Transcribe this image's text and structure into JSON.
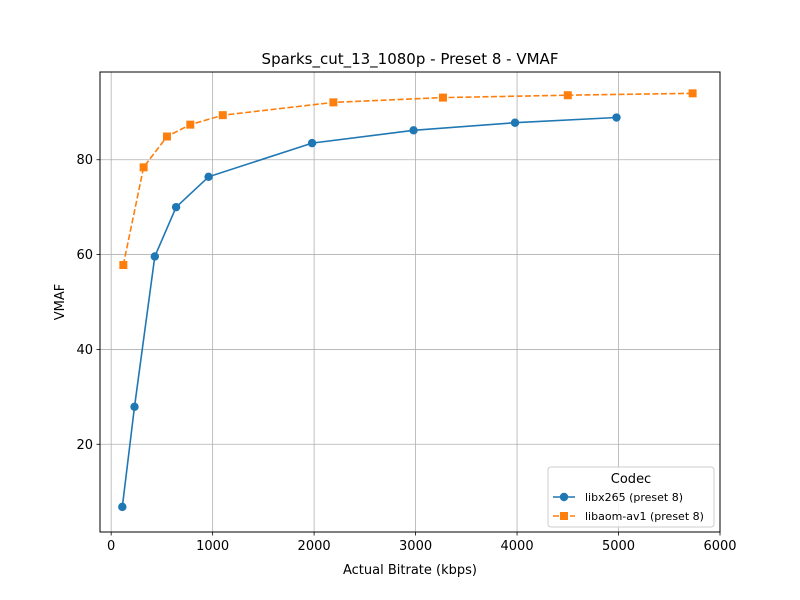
{
  "chart_data": {
    "type": "line",
    "title": "Sparks_cut_13_1080p - Preset 8 - VMAF",
    "xlabel": "Actual Bitrate (kbps)",
    "ylabel": "VMAF",
    "xlim": [
      -110,
      6000
    ],
    "ylim": [
      1.5,
      98.5
    ],
    "x_ticks": [
      0,
      1000,
      2000,
      3000,
      4000,
      5000,
      6000
    ],
    "y_ticks": [
      20,
      40,
      60,
      80
    ],
    "grid": true,
    "legend": {
      "title": "Codec",
      "placement": "lower-right"
    },
    "series": [
      {
        "name": "libx265 (preset 8)",
        "color": "#1f77b4",
        "marker": "circle",
        "linestyle": "solid",
        "x": [
          110,
          230,
          430,
          640,
          960,
          1980,
          2980,
          3980,
          4980
        ],
        "y": [
          6.8,
          27.9,
          59.6,
          70.0,
          76.4,
          83.5,
          86.2,
          87.8,
          88.9
        ]
      },
      {
        "name": "libaom-av1 (preset 8)",
        "color": "#ff7f0e",
        "marker": "square",
        "linestyle": "dashed",
        "x": [
          120,
          320,
          550,
          780,
          1100,
          2190,
          3270,
          4500,
          5730
        ],
        "y": [
          57.8,
          78.4,
          84.9,
          87.4,
          89.4,
          92.1,
          93.1,
          93.6,
          94.0
        ]
      }
    ]
  }
}
